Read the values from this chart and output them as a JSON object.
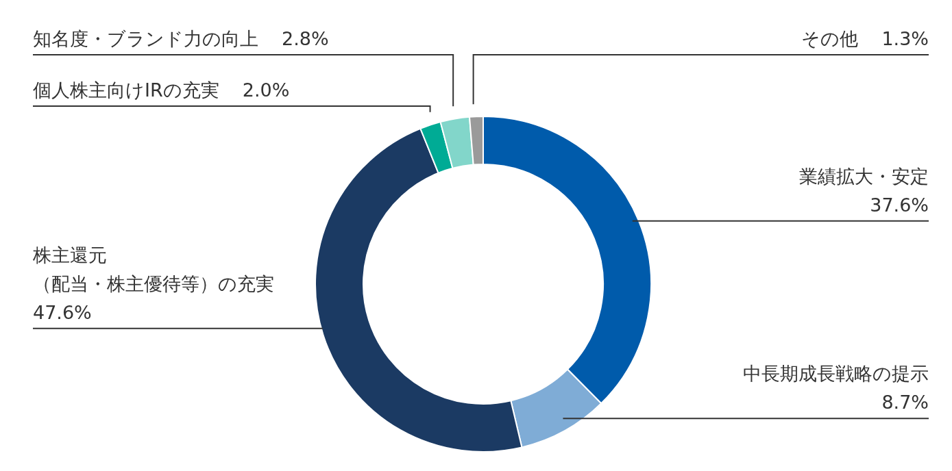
{
  "chart_data": {
    "type": "donut",
    "categories": [
      "業績拡大・安定",
      "中長期成長戦略の提示",
      "株主還元（配当・株主優待等）の充実",
      "個人株主向けIRの充実",
      "知名度・ブランド力の向上",
      "その他"
    ],
    "values": [
      37.6,
      8.7,
      47.6,
      2.0,
      2.8,
      1.3
    ],
    "value_labels": [
      "37.6%",
      "8.7%",
      "47.6%",
      "2.0%",
      "2.8%",
      "1.3%"
    ],
    "colors": [
      "#005bab",
      "#7facd6",
      "#1b3a63",
      "#00ab95",
      "#82d6ca",
      "#9a9a9a"
    ],
    "legend": false
  }
}
